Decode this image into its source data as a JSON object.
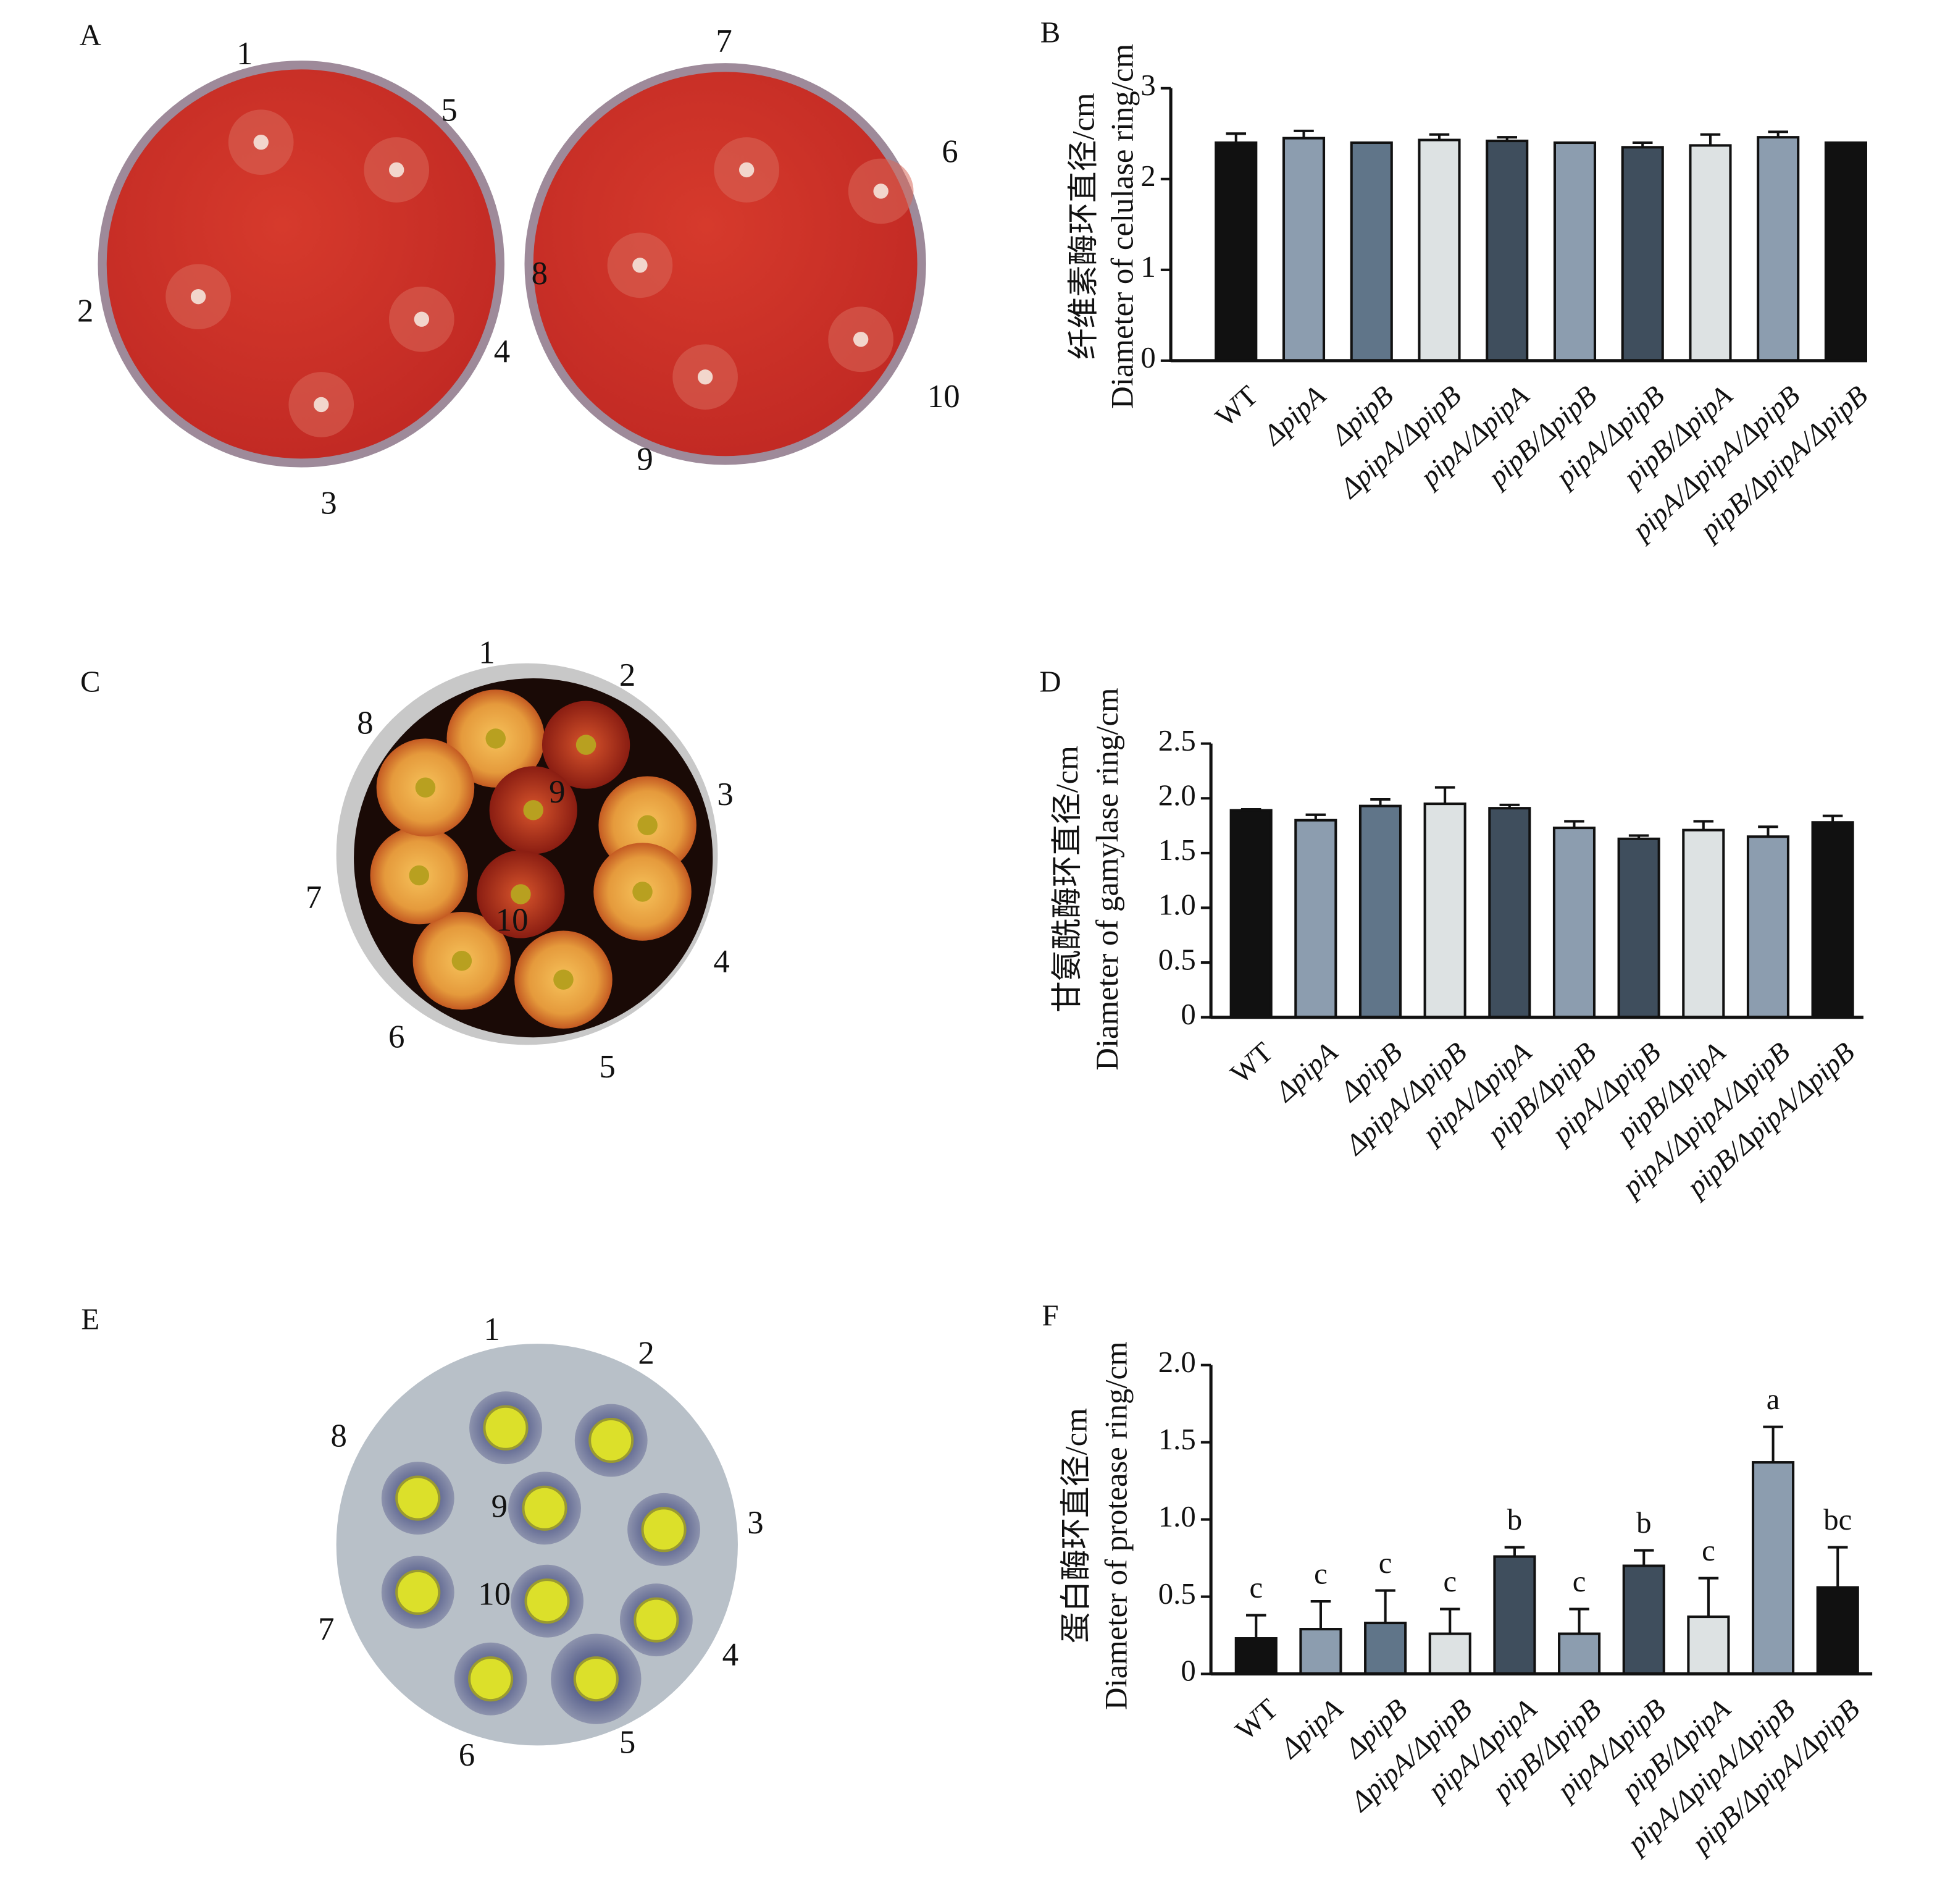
{
  "photo_panels": [
    {
      "panel_label": "A",
      "plate_labels": [
        "1",
        "2",
        "3",
        "4",
        "5",
        "6",
        "7",
        "8",
        "9",
        "10"
      ]
    },
    {
      "panel_label": "C",
      "plate_labels": [
        "1",
        "2",
        "3",
        "4",
        "5",
        "6",
        "7",
        "8",
        "9",
        "10"
      ]
    },
    {
      "panel_label": "E",
      "plate_labels": [
        "1",
        "2",
        "3",
        "4",
        "5",
        "6",
        "7",
        "8",
        "9",
        "10"
      ]
    }
  ],
  "chart_data": [
    {
      "type": "bar",
      "panel_label": "B",
      "ylabel": [
        "纤维素酶环直径/cm",
        "Diameter of celulase ring/cm"
      ],
      "categories": [
        "WT",
        "ΔpipA",
        "ΔpipB",
        "ΔpipA/ΔpipB",
        "pipA/ΔpipA",
        "pipB/ΔpipB",
        "pipA/ΔpipB",
        "pipB/ΔpipA",
        "pipA/ΔpipA/ΔpipB",
        "pipB/ΔpipA/ΔpipB"
      ],
      "values": [
        2.4,
        2.45,
        2.4,
        2.43,
        2.42,
        2.4,
        2.35,
        2.37,
        2.46,
        2.4
      ],
      "errors": [
        0.1,
        0.08,
        0,
        0.06,
        0.04,
        0,
        0.05,
        0.12,
        0.06,
        0
      ],
      "colors": [
        "#111111",
        "#8c9daf",
        "#607589",
        "#dde2e3",
        "#3f4e5d",
        "#8c9daf",
        "#3f4e5d",
        "#dde2e3",
        "#8c9daf",
        "#111111"
      ],
      "ylim": [
        0,
        3
      ],
      "yticks": [
        0,
        1,
        2,
        3
      ]
    },
    {
      "type": "bar",
      "panel_label": "D",
      "ylabel": [
        "甘氨酰酶环直径/cm",
        "Diameter of gamylase ring/cm"
      ],
      "categories": [
        "WT",
        "ΔpipA",
        "ΔpipB",
        "ΔpipA/ΔpipB",
        "pipA/ΔpipA",
        "pipB/ΔpipB",
        "pipA/ΔpipB",
        "pipB/ΔpipA",
        "pipA/ΔpipA/ΔpipB",
        "pipB/ΔpipA/ΔpipB"
      ],
      "values": [
        1.89,
        1.8,
        1.93,
        1.95,
        1.91,
        1.73,
        1.63,
        1.71,
        1.65,
        1.78
      ],
      "errors": [
        0.01,
        0.05,
        0.06,
        0.15,
        0.03,
        0.06,
        0.03,
        0.08,
        0.09,
        0.06
      ],
      "colors": [
        "#111111",
        "#8c9daf",
        "#607589",
        "#dde2e3",
        "#3f4e5d",
        "#8c9daf",
        "#3f4e5d",
        "#dde2e3",
        "#8c9daf",
        "#111111"
      ],
      "ylim": [
        0,
        2.5
      ],
      "yticks": [
        0,
        0.5,
        {
          "value": 1,
          "label": "1.0"
        },
        1.5,
        {
          "value": 2,
          "label": "2.0"
        },
        2.5
      ]
    },
    {
      "type": "bar",
      "panel_label": "F",
      "ylabel": [
        "蛋白酶环直径/cm",
        "Diameter of protease ring/cm"
      ],
      "categories": [
        "WT",
        "ΔpipA",
        "ΔpipB",
        "ΔpipA/ΔpipB",
        "pipA/ΔpipA",
        "pipB/ΔpipB",
        "pipA/ΔpipB",
        "pipB/ΔpipA",
        "pipA/ΔpipA/ΔpipB",
        "pipB/ΔpipA/ΔpipB"
      ],
      "values": [
        0.23,
        0.29,
        0.33,
        0.26,
        0.76,
        0.26,
        0.7,
        0.37,
        1.37,
        0.56
      ],
      "errors": [
        0.15,
        0.18,
        0.21,
        0.16,
        0.06,
        0.16,
        0.1,
        0.25,
        0.23,
        0.26
      ],
      "annotations": [
        "c",
        "c",
        "c",
        "c",
        "b",
        "c",
        "b",
        "c",
        "a",
        "bc"
      ],
      "colors": [
        "#111111",
        "#8c9daf",
        "#607589",
        "#dde2e3",
        "#3f4e5d",
        "#8c9daf",
        "#3f4e5d",
        "#dde2e3",
        "#8c9daf",
        "#111111"
      ],
      "ylim": [
        0,
        2
      ],
      "yticks": [
        0,
        0.5,
        {
          "value": 1,
          "label": "1.0"
        },
        1.5,
        {
          "value": 2,
          "label": "2.0"
        }
      ]
    }
  ]
}
